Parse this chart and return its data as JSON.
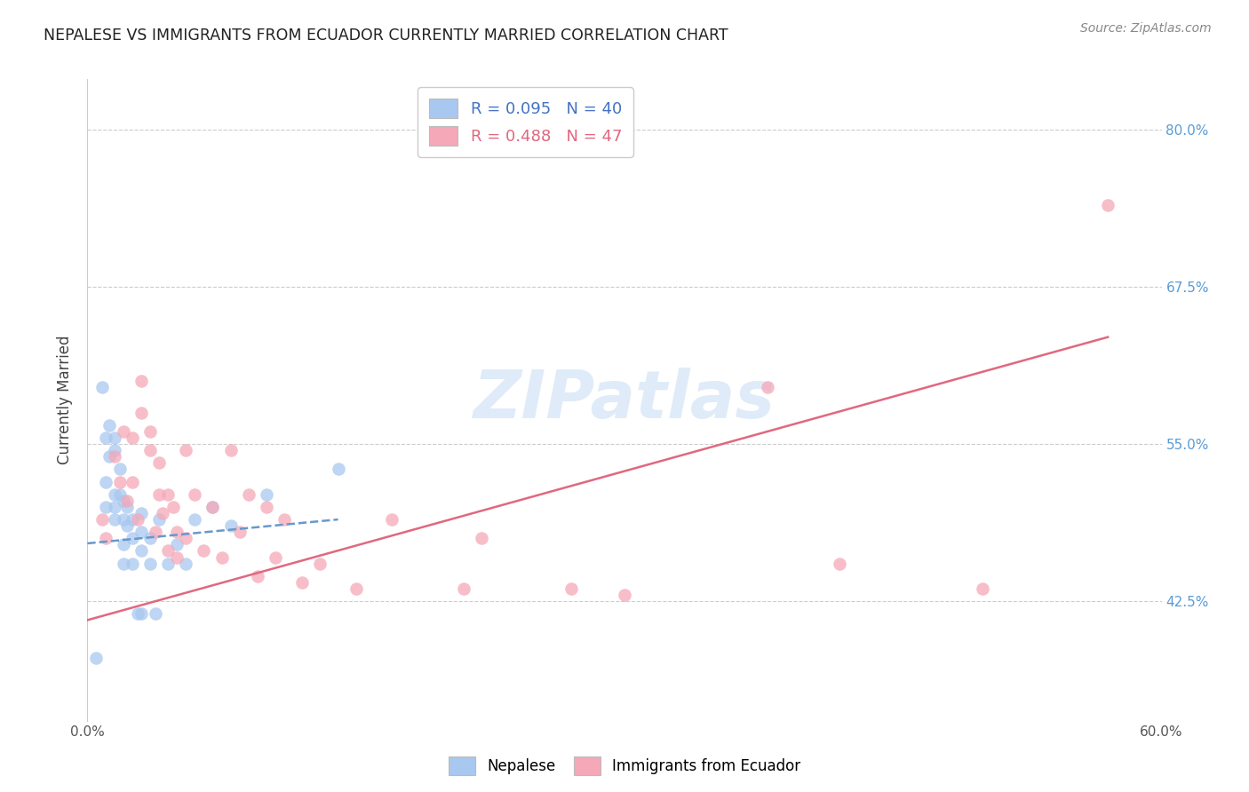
{
  "title": "NEPALESE VS IMMIGRANTS FROM ECUADOR CURRENTLY MARRIED CORRELATION CHART",
  "source": "Source: ZipAtlas.com",
  "ylabel": "Currently Married",
  "yticks": [
    0.425,
    0.55,
    0.675,
    0.8
  ],
  "ytick_labels": [
    "42.5%",
    "55.0%",
    "67.5%",
    "80.0%"
  ],
  "xmin": 0.0,
  "xmax": 0.6,
  "ymin": 0.33,
  "ymax": 0.84,
  "legend_r1": "R = 0.095",
  "legend_n1": "N = 40",
  "legend_r2": "R = 0.488",
  "legend_n2": "N = 47",
  "label1": "Nepalese",
  "label2": "Immigrants from Ecuador",
  "color1": "#a8c8f0",
  "color2": "#f5a8b8",
  "line_color1": "#6699cc",
  "line_color2": "#e06880",
  "watermark": "ZIPatlas",
  "blue_scatter_x": [
    0.005,
    0.008,
    0.01,
    0.01,
    0.01,
    0.012,
    0.012,
    0.015,
    0.015,
    0.015,
    0.015,
    0.015,
    0.018,
    0.018,
    0.02,
    0.02,
    0.02,
    0.02,
    0.022,
    0.022,
    0.025,
    0.025,
    0.025,
    0.028,
    0.03,
    0.03,
    0.03,
    0.03,
    0.035,
    0.035,
    0.038,
    0.04,
    0.045,
    0.05,
    0.055,
    0.06,
    0.07,
    0.08,
    0.1,
    0.14
  ],
  "blue_scatter_y": [
    0.38,
    0.595,
    0.555,
    0.52,
    0.5,
    0.565,
    0.54,
    0.555,
    0.545,
    0.51,
    0.5,
    0.49,
    0.53,
    0.51,
    0.505,
    0.49,
    0.47,
    0.455,
    0.5,
    0.485,
    0.49,
    0.475,
    0.455,
    0.415,
    0.495,
    0.48,
    0.465,
    0.415,
    0.475,
    0.455,
    0.415,
    0.49,
    0.455,
    0.47,
    0.455,
    0.49,
    0.5,
    0.485,
    0.51,
    0.53
  ],
  "pink_scatter_x": [
    0.008,
    0.01,
    0.015,
    0.018,
    0.02,
    0.022,
    0.025,
    0.025,
    0.028,
    0.03,
    0.03,
    0.035,
    0.035,
    0.038,
    0.04,
    0.04,
    0.042,
    0.045,
    0.045,
    0.048,
    0.05,
    0.05,
    0.055,
    0.055,
    0.06,
    0.065,
    0.07,
    0.075,
    0.08,
    0.085,
    0.09,
    0.095,
    0.1,
    0.105,
    0.11,
    0.12,
    0.13,
    0.15,
    0.17,
    0.21,
    0.22,
    0.27,
    0.3,
    0.38,
    0.42,
    0.5,
    0.57
  ],
  "pink_scatter_y": [
    0.49,
    0.475,
    0.54,
    0.52,
    0.56,
    0.505,
    0.555,
    0.52,
    0.49,
    0.6,
    0.575,
    0.56,
    0.545,
    0.48,
    0.535,
    0.51,
    0.495,
    0.465,
    0.51,
    0.5,
    0.48,
    0.46,
    0.545,
    0.475,
    0.51,
    0.465,
    0.5,
    0.46,
    0.545,
    0.48,
    0.51,
    0.445,
    0.5,
    0.46,
    0.49,
    0.44,
    0.455,
    0.435,
    0.49,
    0.435,
    0.475,
    0.435,
    0.43,
    0.595,
    0.455,
    0.435,
    0.74
  ],
  "blue_line_x": [
    0.0,
    0.14
  ],
  "blue_line_y": [
    0.471,
    0.49
  ],
  "pink_line_x": [
    0.0,
    0.57
  ],
  "pink_line_y": [
    0.41,
    0.635
  ]
}
